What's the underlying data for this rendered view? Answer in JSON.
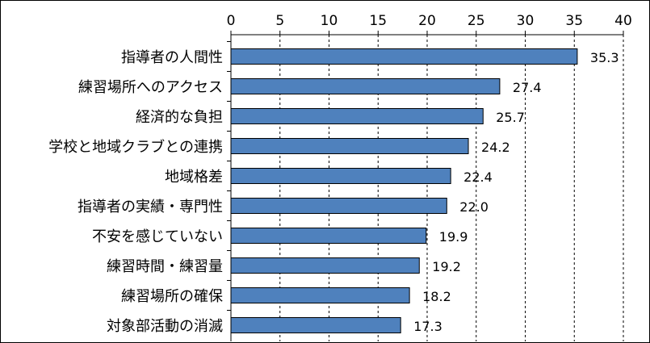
{
  "chart_data": {
    "type": "bar",
    "orientation": "horizontal",
    "categories": [
      "指導者の人間性",
      "練習場所へのアクセス",
      "経済的な負担",
      "学校と地域クラブとの連携",
      "地域格差",
      "指導者の実績・専門性",
      "不安を感じていない",
      "練習時間・練習量",
      "練習場所の確保",
      "対象部活動の消滅"
    ],
    "values": [
      35.3,
      27.4,
      25.7,
      24.2,
      22.4,
      22.0,
      19.9,
      19.2,
      18.2,
      17.3
    ],
    "value_labels": [
      "35.3",
      "27.4",
      "25.7",
      "24.2",
      "22.4",
      "22.0",
      "19.9",
      "19.2",
      "18.2",
      "17.3"
    ],
    "xlim": [
      0,
      40
    ],
    "xticks": [
      0,
      5,
      10,
      15,
      20,
      25,
      30,
      35,
      40
    ],
    "x_axis_position": "top",
    "grid": "vertical dashed",
    "bar_color": "#4F81BD",
    "title": "",
    "xlabel": "",
    "ylabel": ""
  }
}
